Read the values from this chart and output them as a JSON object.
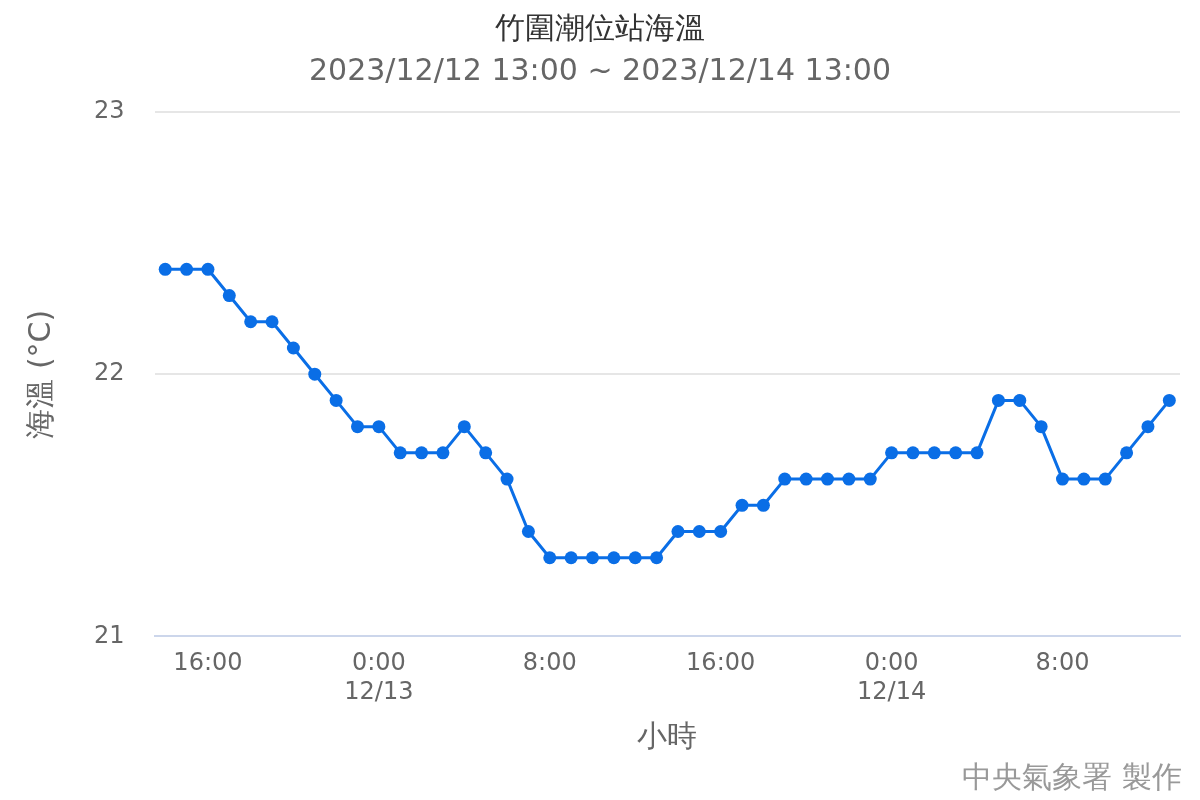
{
  "chart_data": {
    "type": "line",
    "title": "竹圍潮位站海溫",
    "subtitle": "2023/12/12 13:00 ~ 2023/12/14 13:00",
    "xlabel": "小時",
    "ylabel": "海溫 (°C)",
    "annotations": [
      "中央氣象署 製作"
    ],
    "x": [
      "2023-12-12T14:00",
      "2023-12-12T15:00",
      "2023-12-12T16:00",
      "2023-12-12T17:00",
      "2023-12-12T18:00",
      "2023-12-12T19:00",
      "2023-12-12T20:00",
      "2023-12-12T21:00",
      "2023-12-12T22:00",
      "2023-12-12T23:00",
      "2023-12-13T00:00",
      "2023-12-13T01:00",
      "2023-12-13T02:00",
      "2023-12-13T03:00",
      "2023-12-13T04:00",
      "2023-12-13T05:00",
      "2023-12-13T06:00",
      "2023-12-13T07:00",
      "2023-12-13T08:00",
      "2023-12-13T09:00",
      "2023-12-13T10:00",
      "2023-12-13T11:00",
      "2023-12-13T12:00",
      "2023-12-13T13:00",
      "2023-12-13T14:00",
      "2023-12-13T15:00",
      "2023-12-13T16:00",
      "2023-12-13T17:00",
      "2023-12-13T18:00",
      "2023-12-13T19:00",
      "2023-12-13T20:00",
      "2023-12-13T21:00",
      "2023-12-13T22:00",
      "2023-12-13T23:00",
      "2023-12-14T00:00",
      "2023-12-14T01:00",
      "2023-12-14T02:00",
      "2023-12-14T03:00",
      "2023-12-14T04:00",
      "2023-12-14T05:00",
      "2023-12-14T06:00",
      "2023-12-14T07:00",
      "2023-12-14T08:00",
      "2023-12-14T09:00",
      "2023-12-14T10:00",
      "2023-12-14T11:00",
      "2023-12-14T12:00",
      "2023-12-14T13:00"
    ],
    "series": [
      {
        "color": "#0a6ee6",
        "values": [
          22.4,
          22.4,
          22.4,
          22.3,
          22.2,
          22.2,
          22.1,
          22.0,
          21.9,
          21.8,
          21.8,
          21.7,
          21.7,
          21.7,
          21.8,
          21.7,
          21.6,
          21.4,
          21.3,
          21.3,
          21.3,
          21.3,
          21.3,
          21.3,
          21.4,
          21.4,
          21.4,
          21.5,
          21.5,
          21.6,
          21.6,
          21.6,
          21.6,
          21.6,
          21.7,
          21.7,
          21.7,
          21.7,
          21.7,
          21.9,
          21.9,
          21.8,
          21.6,
          21.6,
          21.6,
          21.7,
          21.8,
          21.9
        ]
      }
    ],
    "xlim": [
      "2023-12-12T13:30",
      "2023-12-14T13:30"
    ],
    "xticks": [
      {
        "value": "2023-12-12T16:00",
        "label": "16:00"
      },
      {
        "value": "2023-12-13T00:00",
        "label": "0:00\n12/13"
      },
      {
        "value": "2023-12-13T08:00",
        "label": "8:00"
      },
      {
        "value": "2023-12-13T16:00",
        "label": "16:00"
      },
      {
        "value": "2023-12-14T00:00",
        "label": "0:00\n12/14"
      },
      {
        "value": "2023-12-14T08:00",
        "label": "8:00"
      }
    ],
    "ylim": [
      21,
      23
    ],
    "yticks": [
      21,
      22,
      23
    ],
    "grid": "y",
    "marker": "circle",
    "line_style": "solid",
    "legend": false
  }
}
